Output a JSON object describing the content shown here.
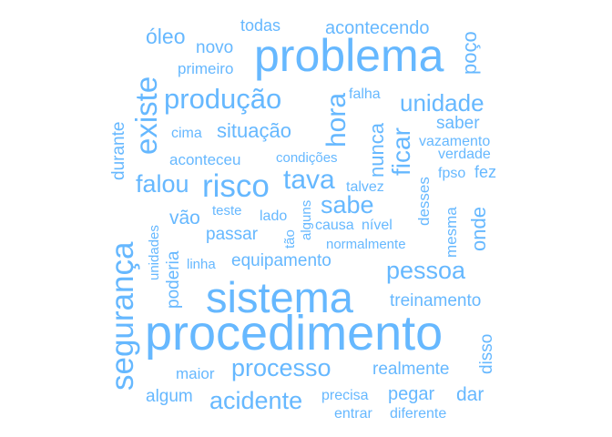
{
  "accent_color": "#66b8ff",
  "words": {
    "problema": "problema",
    "procedimento": "procedimento",
    "sistema": "sistema",
    "seguranca": "segurança",
    "producao": "produção",
    "unidade": "unidade",
    "risco": "risco",
    "existe": "existe",
    "hora": "hora",
    "tava": "tava",
    "processo": "processo",
    "acidente": "acidente",
    "pessoa": "pessoa",
    "sabe": "sabe",
    "ficar": "ficar",
    "nunca": "nunca",
    "situacao": "situação",
    "falou": "falou",
    "oleo": "óleo",
    "poco": "poço",
    "acontecendo": "acontecendo",
    "todas": "todas",
    "novo": "novo",
    "primeiro": "primeiro",
    "falha": "falha",
    "saber": "saber",
    "durante": "durante",
    "cima": "cima",
    "vazamento": "vazamento",
    "verdade": "verdade",
    "aconteceu": "aconteceu",
    "condicoes": "condições",
    "fpso": "fpso",
    "fez": "fez",
    "desses": "desses",
    "talvez": "talvez",
    "vao": "vão",
    "teste": "teste",
    "lado": "lado",
    "alguns": "alguns",
    "causa": "causa",
    "nivel": "nível",
    "onde": "onde",
    "mesma": "mesma",
    "unidades": "unidades",
    "passar": "passar",
    "tao": "tão",
    "normalmente": "normalmente",
    "poderia": "poderia",
    "linha": "linha",
    "equipamento": "equipamento",
    "treinamento": "treinamento",
    "disso": "disso",
    "maior": "maior",
    "realmente": "realmente",
    "algum": "algum",
    "precisa": "precisa",
    "pegar": "pegar",
    "dar": "dar",
    "entrar": "entrar",
    "diferente": "diferente"
  }
}
